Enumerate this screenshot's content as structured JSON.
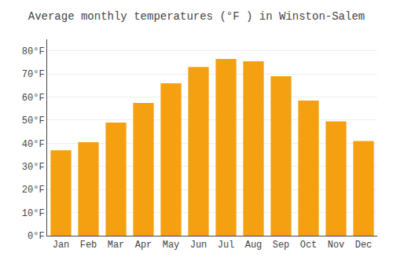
{
  "chart_data": {
    "type": "bar",
    "title": "Average monthly temperatures (°F ) in Winston-Salem",
    "categories": [
      "Jan",
      "Feb",
      "Mar",
      "Apr",
      "May",
      "Jun",
      "Jul",
      "Aug",
      "Sep",
      "Oct",
      "Nov",
      "Dec"
    ],
    "values": [
      37,
      40.5,
      49,
      57.5,
      66,
      73,
      76.5,
      75.5,
      69,
      58.5,
      49.5,
      41
    ],
    "color": "#F5A010",
    "ylim": [
      0,
      85
    ],
    "yticks": [
      {
        "value": 0,
        "label": "0°F"
      },
      {
        "value": 10,
        "label": "10°F"
      },
      {
        "value": 20,
        "label": "20°F"
      },
      {
        "value": 30,
        "label": "30°F"
      },
      {
        "value": 40,
        "label": "40°F"
      },
      {
        "value": 50,
        "label": "50°F"
      },
      {
        "value": 60,
        "label": "60°F"
      },
      {
        "value": 70,
        "label": "70°F"
      },
      {
        "value": 80,
        "label": "80°F"
      }
    ],
    "grid": true
  }
}
